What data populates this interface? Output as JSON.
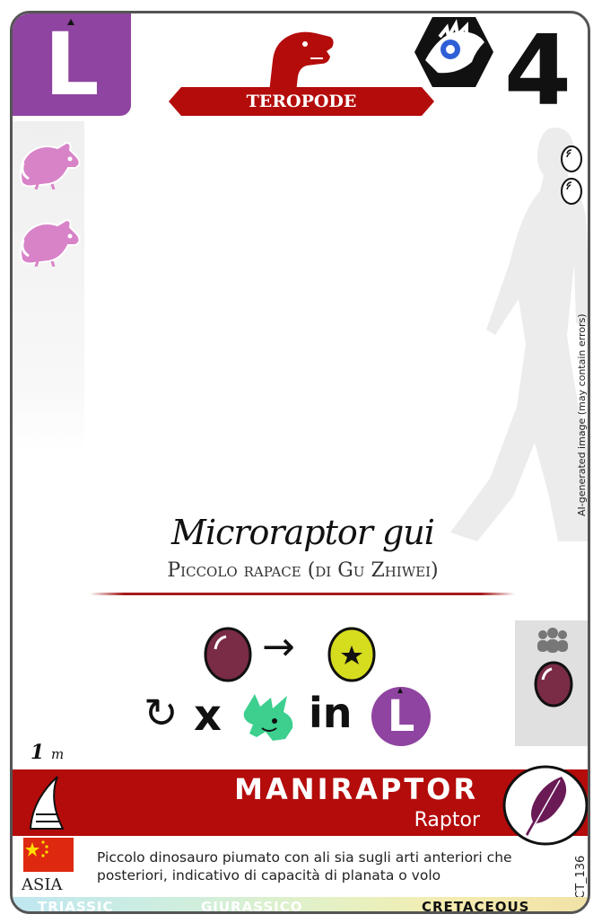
{
  "card": {
    "type_letter": "L",
    "cost": "4",
    "category": "TEROPODE",
    "scientific_name": "Microraptor gui",
    "common_name": "Piccolo rapace (di Gu Zhiwei)",
    "size_value": "1",
    "size_unit": "m",
    "group": "MANIRAPTOR",
    "subgroup": "Raptor",
    "description": "Piccolo dinosauro piumato con ali sia sugli arti anteriori che posteriori, indicativo di capacità di planata o volo",
    "region": "ASIA",
    "code": "CT_136",
    "ai_note": "AI-generated image (may contain errors)"
  },
  "ability": {
    "multiply": "x",
    "in_word": "in",
    "target_letter": "L"
  },
  "eras": [
    "TRIASSIC",
    "GIURASSICO",
    "CRETACEOUS"
  ],
  "colors": {
    "purple": "#8e44a0",
    "red": "#b40b0b",
    "egg": "#7a2b45",
    "star_egg": "#d6dc1e",
    "mouse": "#d883c8",
    "triceratops": "#3ccf8e",
    "era_active": "#111111",
    "era_inactive": "#ffffff"
  },
  "icons": {
    "food_1": "mouse-icon",
    "food_2": "mouse-icon",
    "eggs": [
      "egg-outline-icon",
      "egg-outline-icon"
    ],
    "group_egg": "egg-icon",
    "flag": "china-flag-icon",
    "habitat": "shark-fin-icon",
    "feather": "feather-icon",
    "eye": "eye-hex-icon",
    "category": "theropod-head-icon"
  }
}
